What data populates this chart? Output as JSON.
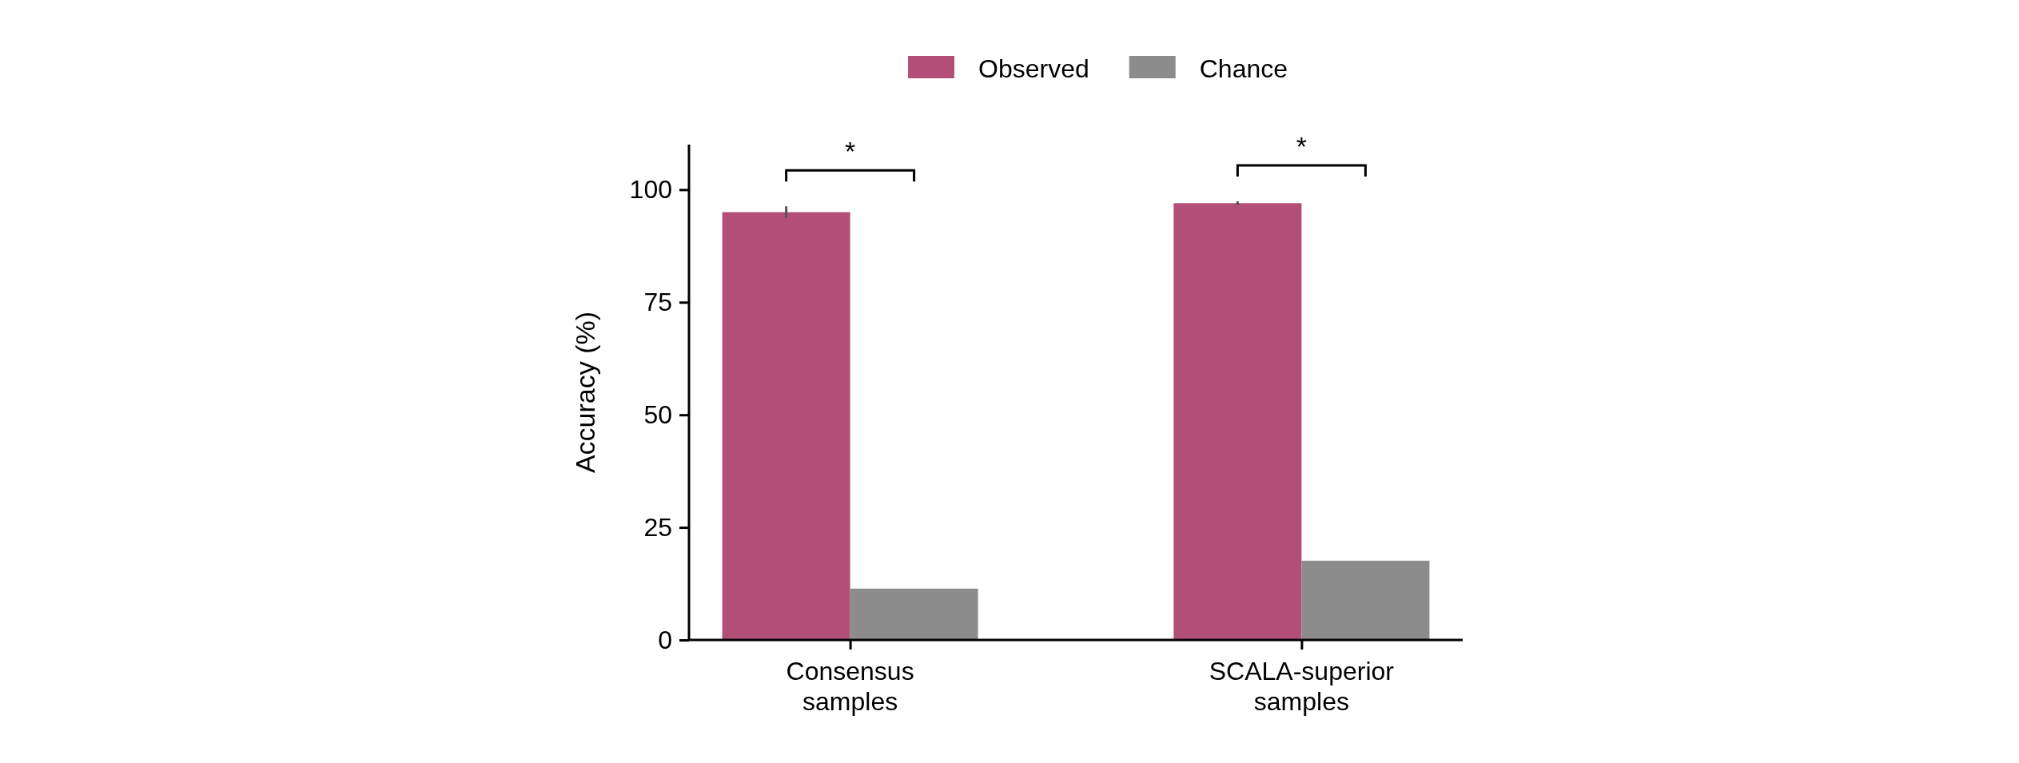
{
  "chart_data": {
    "type": "bar",
    "ylabel": "Accuracy (%)",
    "categories": [
      "Consensus samples",
      "SCALA-superior samples"
    ],
    "series": [
      {
        "name": "Observed",
        "color": "#b34e76",
        "values": [
          95.0,
          97.0
        ],
        "errors": [
          1.3,
          0.4
        ]
      },
      {
        "name": "Chance",
        "color": "#8c8c8c",
        "values": [
          11.4,
          17.6
        ]
      }
    ],
    "ylim": [
      0,
      110
    ],
    "yticks": [
      0,
      25,
      50,
      75,
      100
    ],
    "grid": false,
    "legend": "top",
    "annotations": [
      "*",
      "*"
    ]
  }
}
